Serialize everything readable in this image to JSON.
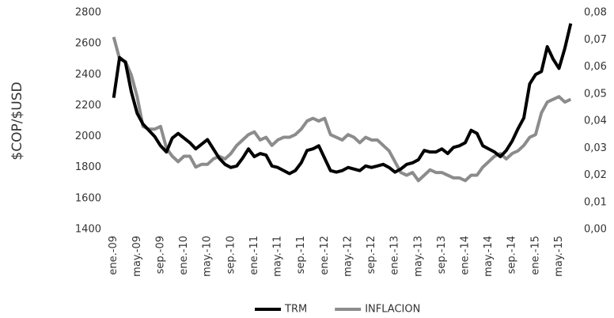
{
  "chart_data": {
    "type": "line",
    "y_label": "$COP/$USD",
    "categories": [
      "ene.-09",
      null,
      null,
      null,
      "may.-09",
      null,
      null,
      null,
      "sep.-09",
      null,
      null,
      null,
      "ene.-10",
      null,
      null,
      null,
      "may.-10",
      null,
      null,
      null,
      "sep.-10",
      null,
      null,
      null,
      "ene.-11",
      null,
      null,
      null,
      "may.-11",
      null,
      null,
      null,
      "sep.-11",
      null,
      null,
      null,
      "ene.-12",
      null,
      null,
      null,
      "may.-12",
      null,
      null,
      null,
      "sep.-12",
      null,
      null,
      null,
      "ene.-13",
      null,
      null,
      null,
      "may.-13",
      null,
      null,
      null,
      "sep.-13",
      null,
      null,
      null,
      "ene.-14",
      null,
      null,
      null,
      "may.-14",
      null,
      null,
      null,
      "sep.-14",
      null,
      null,
      null,
      "ene.-15",
      null,
      null,
      null,
      "may.-15",
      null,
      null
    ],
    "series": [
      {
        "name": "TRM",
        "color": "#000000",
        "values": [
          2250,
          2510,
          2480,
          2290,
          2150,
          2080,
          2040,
          2000,
          1940,
          1900,
          1990,
          2020,
          1990,
          1960,
          1920,
          1950,
          1980,
          1920,
          1860,
          1820,
          1800,
          1810,
          1860,
          1920,
          1870,
          1890,
          1880,
          1810,
          1800,
          1780,
          1760,
          1780,
          1830,
          1910,
          1920,
          1940,
          1860,
          1780,
          1770,
          1780,
          1800,
          1790,
          1780,
          1810,
          1800,
          1810,
          1820,
          1800,
          1770,
          1790,
          1820,
          1830,
          1850,
          1910,
          1900,
          1900,
          1920,
          1890,
          1930,
          1940,
          1960,
          2040,
          2020,
          1940,
          1920,
          1900,
          1870,
          1910,
          1970,
          2050,
          2120,
          2340,
          2400,
          2420,
          2580,
          2500,
          2440,
          2570,
          2730
        ]
      },
      {
        "name": "INFLACION",
        "color": "#8c8c8c",
        "axis": "y2",
        "values": [
          0.071,
          0.063,
          0.062,
          0.057,
          0.049,
          0.038,
          0.037,
          0.037,
          0.038,
          0.03,
          0.027,
          0.025,
          0.027,
          0.027,
          0.023,
          0.024,
          0.024,
          0.026,
          0.027,
          0.026,
          0.028,
          0.031,
          0.033,
          0.035,
          0.036,
          0.033,
          0.034,
          0.031,
          0.033,
          0.034,
          0.034,
          0.035,
          0.037,
          0.04,
          0.041,
          0.04,
          0.041,
          0.035,
          0.034,
          0.033,
          0.035,
          0.034,
          0.032,
          0.034,
          0.033,
          0.033,
          0.031,
          0.029,
          0.025,
          0.021,
          0.02,
          0.021,
          0.018,
          0.02,
          0.022,
          0.021,
          0.021,
          0.02,
          0.019,
          0.019,
          0.018,
          0.02,
          0.02,
          0.023,
          0.025,
          0.027,
          0.028,
          0.026,
          0.028,
          0.029,
          0.031,
          0.034,
          0.035,
          0.043,
          0.047,
          0.048,
          0.049,
          0.047,
          0.048
        ]
      }
    ],
    "ylim": [
      1400,
      2800
    ],
    "yticks": [
      1400,
      1600,
      1800,
      2000,
      2200,
      2400,
      2600,
      2800
    ],
    "y2lim": [
      0,
      0.08
    ],
    "y2ticks": [
      {
        "value": 0,
        "label": "0,00"
      },
      {
        "value": 0.01,
        "label": "0,01"
      },
      {
        "value": 0.02,
        "label": "0,02"
      },
      {
        "value": 0.03,
        "label": "0,03"
      },
      {
        "value": 0.04,
        "label": "0,04"
      },
      {
        "value": 0.05,
        "label": "0,05"
      },
      {
        "value": 0.06,
        "label": "0,06"
      },
      {
        "value": 0.07,
        "label": "0,07"
      },
      {
        "value": 0.08,
        "label": "0,08"
      }
    ],
    "legend": "bottom"
  }
}
